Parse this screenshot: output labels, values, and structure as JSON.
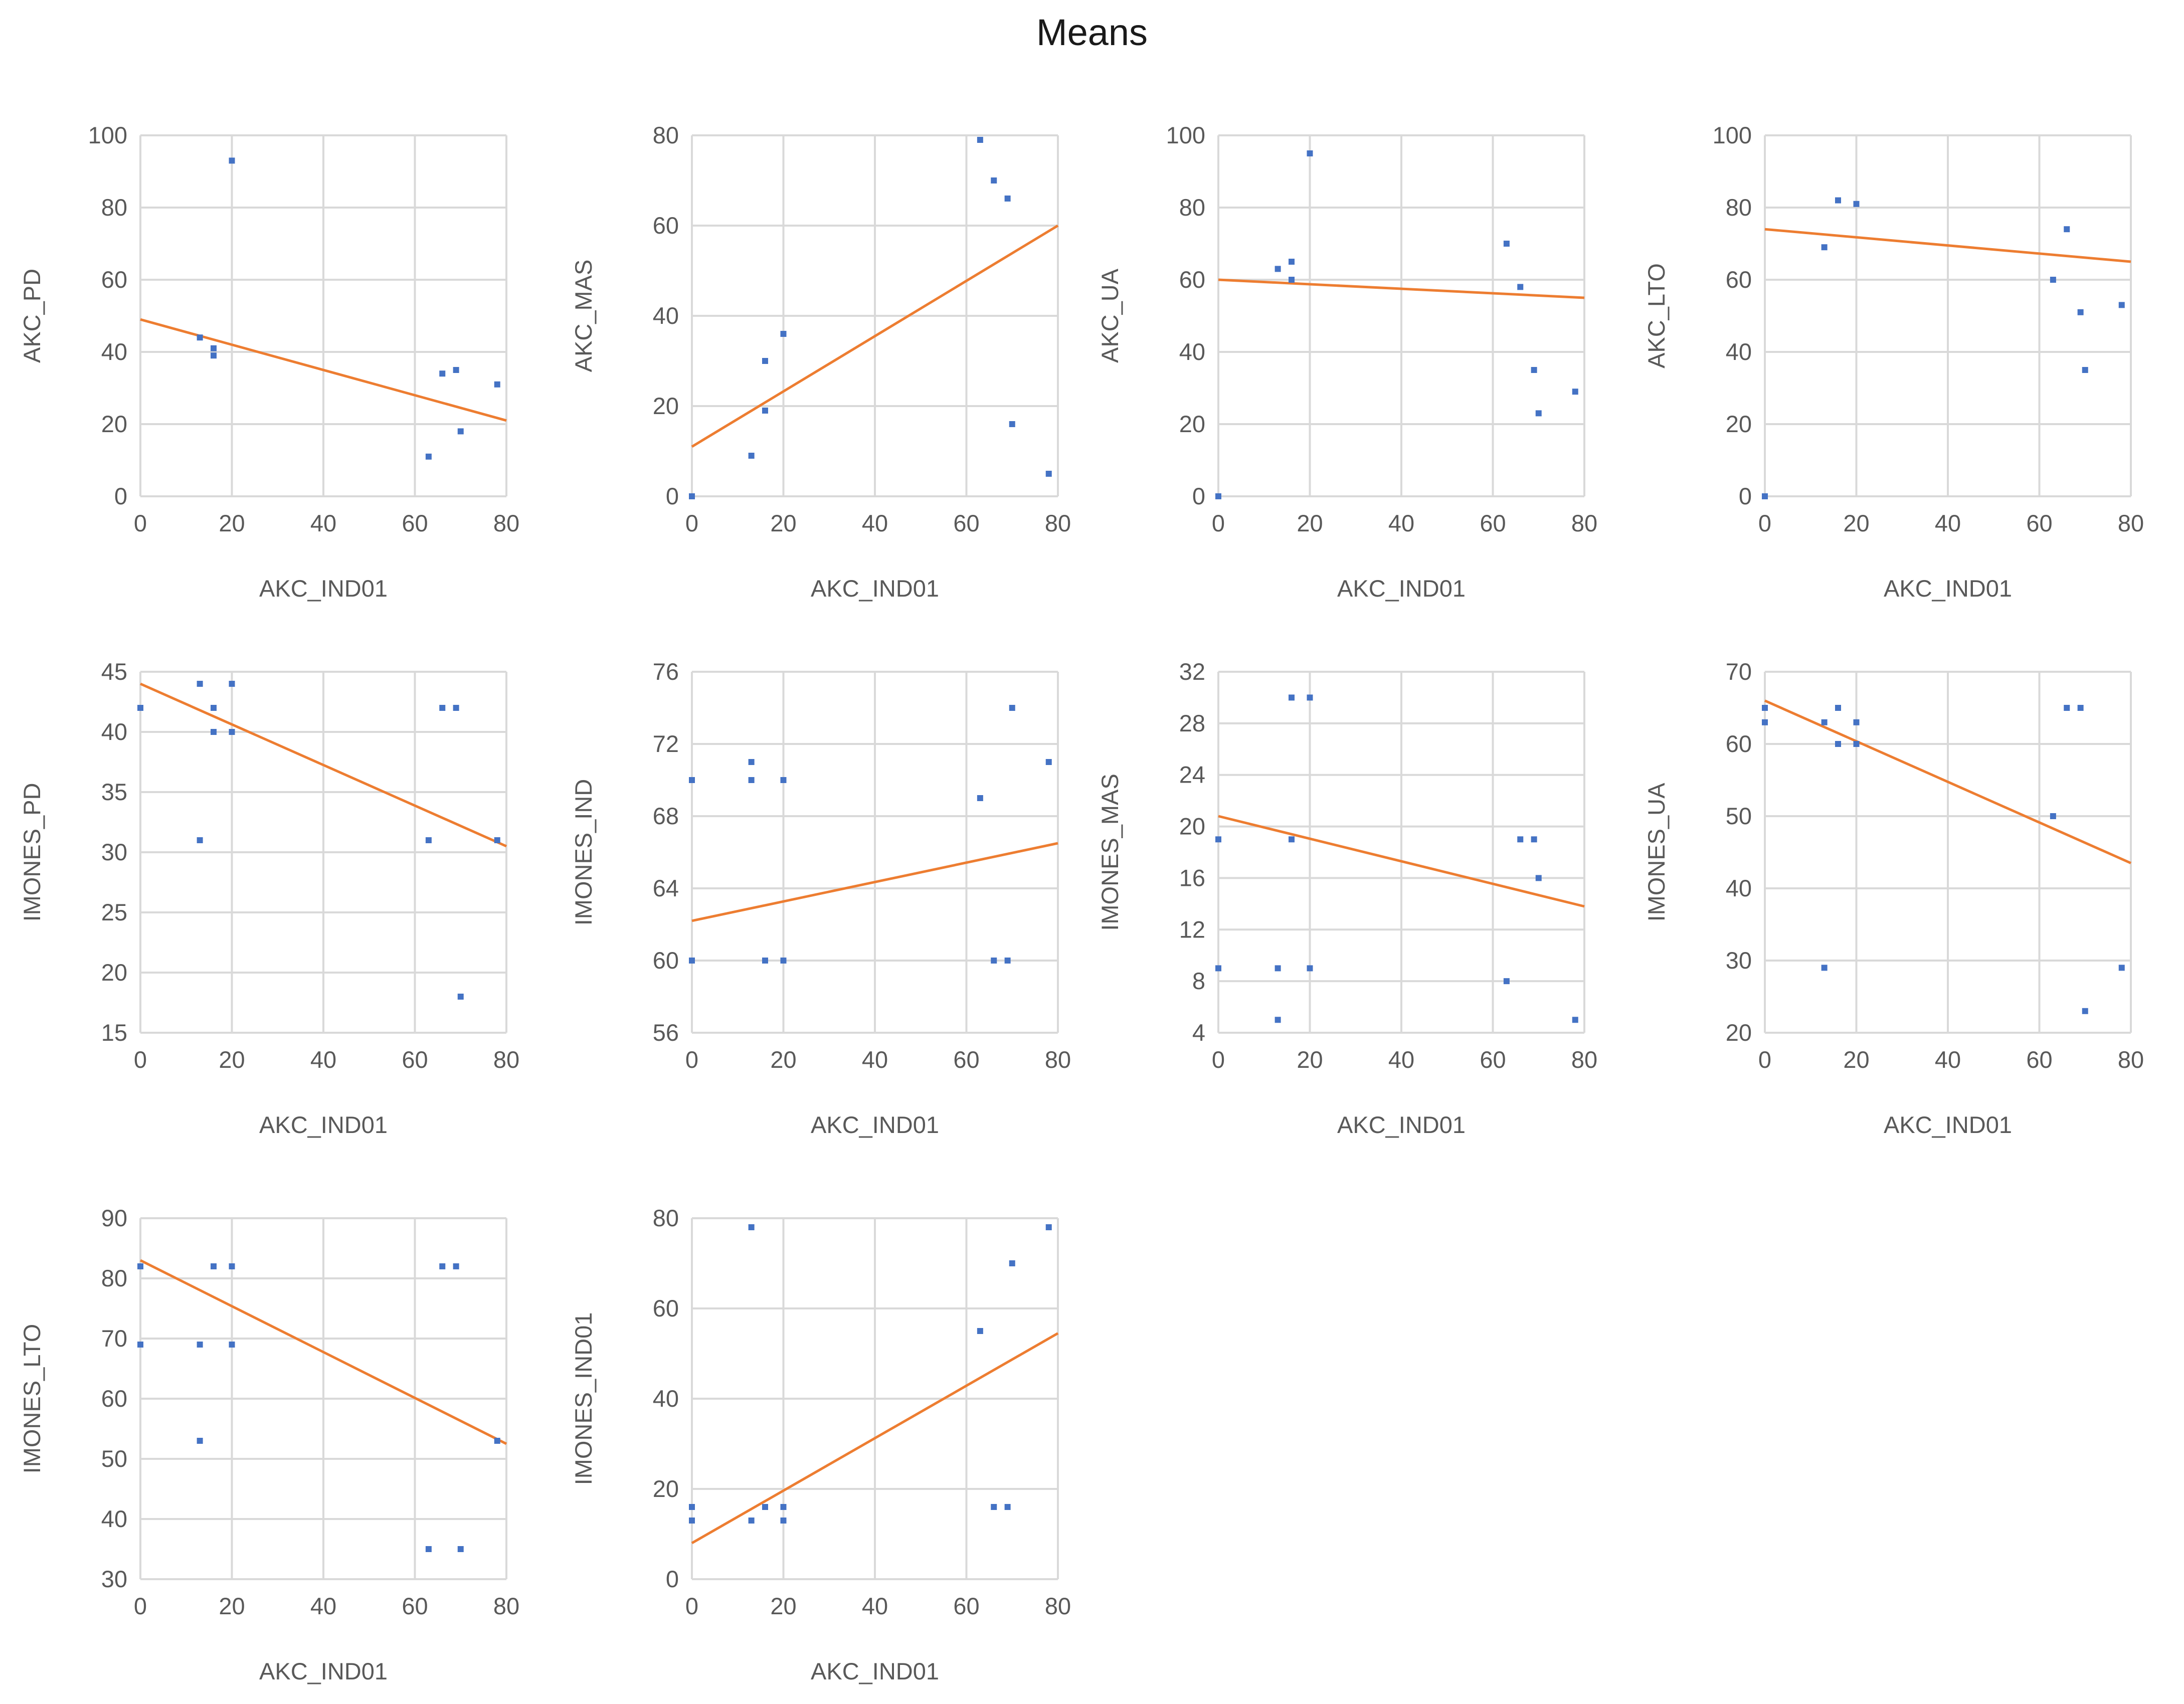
{
  "title": "Means",
  "colors": {
    "points": "#4472c4",
    "trendline": "#ed7d31",
    "grid": "#d9d9d9",
    "text": "#595959"
  },
  "chart_data": [
    {
      "type": "scatter",
      "title": "",
      "xlabel": "AKC_IND01",
      "ylabel": "AKC_PD",
      "xlim": [
        0,
        80
      ],
      "ylim": [
        0,
        100
      ],
      "xticks": [
        0,
        20,
        40,
        60,
        80
      ],
      "yticks": [
        0,
        20,
        40,
        60,
        80,
        100
      ],
      "points": [
        [
          13,
          44
        ],
        [
          16,
          41
        ],
        [
          16,
          39
        ],
        [
          20,
          93
        ],
        [
          63,
          11
        ],
        [
          66,
          34
        ],
        [
          69,
          35
        ],
        [
          70,
          18
        ],
        [
          78,
          31
        ]
      ],
      "trendline": [
        [
          0,
          49
        ],
        [
          80,
          21
        ]
      ]
    },
    {
      "type": "scatter",
      "title": "",
      "xlabel": "AKC_IND01",
      "ylabel": "AKC_MAS",
      "xlim": [
        0,
        80
      ],
      "ylim": [
        0,
        80
      ],
      "xticks": [
        0,
        20,
        40,
        60,
        80
      ],
      "yticks": [
        0,
        20,
        40,
        60,
        80
      ],
      "points": [
        [
          0,
          0
        ],
        [
          13,
          9
        ],
        [
          16,
          19
        ],
        [
          16,
          30
        ],
        [
          20,
          36
        ],
        [
          63,
          79
        ],
        [
          66,
          70
        ],
        [
          69,
          66
        ],
        [
          70,
          16
        ],
        [
          78,
          5
        ]
      ],
      "trendline": [
        [
          0,
          11
        ],
        [
          80,
          60
        ]
      ]
    },
    {
      "type": "scatter",
      "title": "",
      "xlabel": "AKC_IND01",
      "ylabel": "AKC_UA",
      "xlim": [
        0,
        80
      ],
      "ylim": [
        0,
        100
      ],
      "xticks": [
        0,
        20,
        40,
        60,
        80
      ],
      "yticks": [
        0,
        20,
        40,
        60,
        80,
        100
      ],
      "points": [
        [
          0,
          0
        ],
        [
          13,
          63
        ],
        [
          16,
          65
        ],
        [
          16,
          60
        ],
        [
          20,
          95
        ],
        [
          63,
          70
        ],
        [
          66,
          58
        ],
        [
          69,
          35
        ],
        [
          70,
          23
        ],
        [
          78,
          29
        ]
      ],
      "trendline": [
        [
          0,
          60
        ],
        [
          80,
          55
        ]
      ]
    },
    {
      "type": "scatter",
      "title": "",
      "xlabel": "AKC_IND01",
      "ylabel": "AKC_LTO",
      "xlim": [
        0,
        80
      ],
      "ylim": [
        0,
        100
      ],
      "xticks": [
        0,
        20,
        40,
        60,
        80
      ],
      "yticks": [
        0,
        20,
        40,
        60,
        80,
        100
      ],
      "points": [
        [
          0,
          0
        ],
        [
          13,
          69
        ],
        [
          16,
          82
        ],
        [
          20,
          81
        ],
        [
          63,
          60
        ],
        [
          66,
          74
        ],
        [
          69,
          51
        ],
        [
          70,
          35
        ],
        [
          78,
          53
        ]
      ],
      "trendline": [
        [
          0,
          74
        ],
        [
          80,
          65
        ]
      ]
    },
    {
      "type": "scatter",
      "title": "",
      "xlabel": "AKC_IND01",
      "ylabel": "IMONES_PD",
      "xlim": [
        0,
        80
      ],
      "ylim": [
        15,
        45
      ],
      "xticks": [
        0,
        20,
        40,
        60,
        80
      ],
      "yticks": [
        15,
        20,
        25,
        30,
        35,
        40,
        45
      ],
      "points": [
        [
          0,
          42
        ],
        [
          13,
          44
        ],
        [
          13,
          31
        ],
        [
          16,
          42
        ],
        [
          16,
          40
        ],
        [
          20,
          44
        ],
        [
          20,
          40
        ],
        [
          63,
          31
        ],
        [
          66,
          42
        ],
        [
          69,
          42
        ],
        [
          70,
          18
        ],
        [
          78,
          31
        ]
      ],
      "trendline": [
        [
          0,
          44
        ],
        [
          80,
          30.5
        ]
      ]
    },
    {
      "type": "scatter",
      "title": "",
      "xlabel": "AKC_IND01",
      "ylabel": "IMONES_IND",
      "xlim": [
        0,
        80
      ],
      "ylim": [
        56,
        76
      ],
      "xticks": [
        0,
        20,
        40,
        60,
        80
      ],
      "yticks": [
        56,
        60,
        64,
        68,
        72,
        76
      ],
      "points": [
        [
          0,
          70
        ],
        [
          0,
          60
        ],
        [
          13,
          71
        ],
        [
          13,
          70
        ],
        [
          16,
          60
        ],
        [
          20,
          70
        ],
        [
          20,
          60
        ],
        [
          63,
          69
        ],
        [
          66,
          60
        ],
        [
          69,
          60
        ],
        [
          70,
          74
        ],
        [
          78,
          71
        ]
      ],
      "trendline": [
        [
          0,
          62.2
        ],
        [
          80,
          66.5
        ]
      ]
    },
    {
      "type": "scatter",
      "title": "",
      "xlabel": "AKC_IND01",
      "ylabel": "IMONES_MAS",
      "xlim": [
        0,
        80
      ],
      "ylim": [
        4,
        32
      ],
      "xticks": [
        0,
        20,
        40,
        60,
        80
      ],
      "yticks": [
        4,
        8,
        12,
        16,
        20,
        24,
        28,
        32
      ],
      "points": [
        [
          0,
          19
        ],
        [
          0,
          9
        ],
        [
          13,
          9
        ],
        [
          13,
          5
        ],
        [
          16,
          30
        ],
        [
          16,
          19
        ],
        [
          20,
          30
        ],
        [
          20,
          9
        ],
        [
          63,
          8
        ],
        [
          66,
          19
        ],
        [
          69,
          19
        ],
        [
          70,
          16
        ],
        [
          78,
          5
        ]
      ],
      "trendline": [
        [
          0,
          20.8
        ],
        [
          80,
          13.8
        ]
      ]
    },
    {
      "type": "scatter",
      "title": "",
      "xlabel": "AKC_IND01",
      "ylabel": "IMONES_UA",
      "xlim": [
        0,
        80
      ],
      "ylim": [
        20,
        70
      ],
      "xticks": [
        0,
        20,
        40,
        60,
        80
      ],
      "yticks": [
        20,
        30,
        40,
        50,
        60,
        70
      ],
      "points": [
        [
          0,
          65
        ],
        [
          0,
          63
        ],
        [
          13,
          63
        ],
        [
          13,
          29
        ],
        [
          16,
          65
        ],
        [
          16,
          60
        ],
        [
          20,
          63
        ],
        [
          20,
          60
        ],
        [
          63,
          50
        ],
        [
          66,
          65
        ],
        [
          69,
          65
        ],
        [
          70,
          23
        ],
        [
          78,
          29
        ]
      ],
      "trendline": [
        [
          0,
          66
        ],
        [
          80,
          43.5
        ]
      ]
    },
    {
      "type": "scatter",
      "title": "",
      "xlabel": "AKC_IND01",
      "ylabel": "IMONES_LTO",
      "xlim": [
        0,
        80
      ],
      "ylim": [
        30,
        90
      ],
      "xticks": [
        0,
        20,
        40,
        60,
        80
      ],
      "yticks": [
        30,
        40,
        50,
        60,
        70,
        80,
        90
      ],
      "points": [
        [
          0,
          82
        ],
        [
          0,
          69
        ],
        [
          13,
          69
        ],
        [
          13,
          53
        ],
        [
          16,
          82
        ],
        [
          20,
          82
        ],
        [
          20,
          69
        ],
        [
          63,
          35
        ],
        [
          66,
          82
        ],
        [
          69,
          82
        ],
        [
          70,
          35
        ],
        [
          78,
          53
        ]
      ],
      "trendline": [
        [
          0,
          83
        ],
        [
          80,
          52.5
        ]
      ]
    },
    {
      "type": "scatter",
      "title": "",
      "xlabel": "AKC_IND01",
      "ylabel": "IMONES_IND01",
      "xlim": [
        0,
        80
      ],
      "ylim": [
        0,
        80
      ],
      "xticks": [
        0,
        20,
        40,
        60,
        80
      ],
      "yticks": [
        0,
        20,
        40,
        60,
        80
      ],
      "points": [
        [
          0,
          16
        ],
        [
          0,
          13
        ],
        [
          13,
          78
        ],
        [
          13,
          13
        ],
        [
          16,
          16
        ],
        [
          20,
          16
        ],
        [
          20,
          13
        ],
        [
          63,
          55
        ],
        [
          66,
          16
        ],
        [
          69,
          16
        ],
        [
          70,
          70
        ],
        [
          78,
          78
        ]
      ],
      "trendline": [
        [
          0,
          8
        ],
        [
          80,
          54.5
        ]
      ]
    }
  ]
}
